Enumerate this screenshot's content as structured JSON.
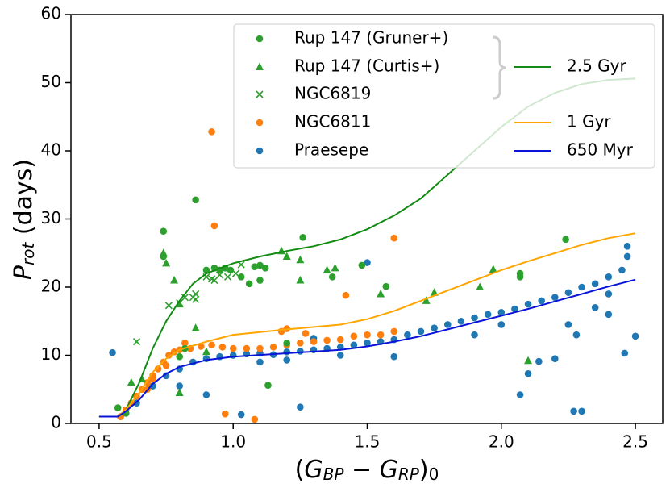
{
  "chart_data": {
    "type": "scatter",
    "xlabel": [
      {
        "text": "("
      },
      {
        "text": "G",
        "italic": true
      },
      {
        "text": "BP",
        "italic": true,
        "sub": true
      },
      {
        "text": " − "
      },
      {
        "text": "G",
        "italic": true
      },
      {
        "text": "RP",
        "italic": true,
        "sub": true
      },
      {
        "text": ")"
      },
      {
        "text": "0",
        "sub": true
      }
    ],
    "ylabel": [
      {
        "text": "P",
        "italic": true
      },
      {
        "text": "rot",
        "italic": true,
        "sub": true
      },
      {
        "text": " (days)"
      }
    ],
    "xlim": [
      0.395,
      2.602
    ],
    "ylim": [
      0,
      60
    ],
    "xticks": [
      0.5,
      {
        "value": 1,
        "label": "1.0"
      },
      1.5,
      {
        "value": 2,
        "label": "2.0"
      },
      2.5
    ],
    "yticks": [
      0,
      10,
      20,
      30,
      40,
      50,
      60
    ],
    "series": [
      {
        "name": "Rup 147 (Gruner+)",
        "color": "#2ca02c",
        "marker": "circle",
        "x": [
          0.74,
          0.74,
          0.86,
          0.9,
          0.93,
          0.95,
          0.97,
          0.99,
          1.03,
          1.08,
          1.1,
          1.12,
          1.06,
          1.1,
          1.2,
          1.13,
          1.26,
          1.37,
          1.48,
          1.57,
          2.07,
          2.07,
          2.24,
          0.57,
          0.6,
          0.82,
          0.8
        ],
        "y": [
          28.2,
          24.5,
          32.8,
          22.5,
          22.8,
          22.5,
          22.8,
          22.5,
          21.5,
          23,
          23.2,
          22.8,
          20.5,
          21,
          11.8,
          5.6,
          27.3,
          21.5,
          23.2,
          20.1,
          22,
          21.5,
          27,
          2.3,
          1.5,
          11,
          9.8
        ]
      },
      {
        "name": "Rup 147 (Curtis+)",
        "color": "#2ca02c",
        "marker": "triangle",
        "x": [
          0.62,
          0.66,
          0.75,
          0.74,
          0.78,
          0.8,
          0.8,
          0.86,
          0.9,
          1.2,
          1.18,
          1.25,
          1.35,
          1.38,
          1.55,
          1.72,
          1.75,
          1.92,
          1.97,
          2.1,
          1.25
        ],
        "y": [
          6,
          6.5,
          23.5,
          25,
          21,
          17.5,
          4.5,
          14,
          10.5,
          24.5,
          25.3,
          24,
          22.5,
          22.8,
          19,
          18,
          19.2,
          20,
          22.6,
          9.2,
          21
        ]
      },
      {
        "name": "NGC6819",
        "color": "#2ca02c",
        "marker": "x",
        "x": [
          0.64,
          0.76,
          0.8,
          0.82,
          0.85,
          0.86,
          0.9,
          0.92,
          0.95,
          0.98,
          1.01,
          1.03,
          0.95,
          0.86,
          0.93
        ],
        "y": [
          12,
          17.3,
          17.7,
          18.5,
          18.5,
          19,
          21.5,
          21.2,
          21.8,
          21.5,
          22,
          23.3,
          22.5,
          18.2,
          21
        ]
      },
      {
        "name": "NGC6811",
        "color": "#ff7f0e",
        "marker": "circle",
        "x": [
          0.58,
          0.6,
          0.62,
          0.64,
          0.66,
          0.68,
          0.7,
          0.72,
          0.74,
          0.76,
          0.78,
          0.8,
          0.84,
          0.88,
          0.92,
          0.96,
          1.0,
          1.05,
          1.1,
          1.15,
          1.2,
          1.25,
          1.3,
          1.35,
          1.4,
          1.45,
          1.5,
          1.55,
          1.42,
          1.6,
          0.92,
          0.93,
          0.97,
          1.08,
          1.18,
          1.27,
          0.7,
          0.68,
          0.75,
          0.82,
          1.2,
          1.6
        ],
        "y": [
          1,
          2,
          3,
          4,
          5,
          6,
          7,
          8,
          9,
          10,
          10.5,
          10.8,
          11,
          11.3,
          11.5,
          11.2,
          11,
          11,
          11,
          11.2,
          11.5,
          11.8,
          12,
          12.2,
          12.3,
          12.8,
          13,
          13,
          18.8,
          27.2,
          42.8,
          29,
          1.4,
          0.6,
          13.5,
          13.2,
          6.5,
          5,
          8.5,
          11.8,
          13.9,
          13.5
        ]
      },
      {
        "name": "Praesepe",
        "color": "#1f77b4",
        "marker": "circle",
        "x": [
          0.55,
          0.58,
          0.6,
          0.64,
          0.7,
          0.75,
          0.8,
          0.85,
          0.9,
          0.95,
          1.0,
          1.05,
          1.1,
          1.15,
          1.2,
          1.25,
          1.3,
          1.35,
          1.4,
          1.45,
          1.5,
          1.55,
          1.6,
          1.65,
          1.7,
          1.75,
          1.8,
          1.85,
          1.9,
          1.95,
          2.0,
          2.05,
          2.1,
          2.15,
          2.2,
          2.25,
          2.3,
          2.35,
          2.4,
          2.45,
          2.47,
          2.47,
          2.5,
          2.46,
          2.27,
          2.3,
          2.07,
          2.1,
          2.14,
          2.2,
          2.25,
          2.28,
          2.35,
          1.5,
          1.25,
          1.03,
          0.9,
          0.8,
          1.9,
          2.0,
          1.6,
          1.4,
          1.2,
          1.1,
          1.3,
          2.4,
          2.4
        ],
        "y": [
          10.4,
          1,
          1.5,
          3,
          5.5,
          7,
          8,
          9,
          9.5,
          9.8,
          10,
          10.2,
          10.3,
          10.1,
          10.5,
          10.6,
          10.8,
          11,
          11.2,
          11.5,
          11.8,
          12,
          12.3,
          13,
          13.5,
          14,
          14.5,
          15,
          15.5,
          16,
          16.3,
          16.8,
          17.5,
          18,
          18.5,
          19.2,
          20,
          20.5,
          21.5,
          22.5,
          26,
          24.5,
          12.8,
          10.3,
          1.8,
          1.8,
          4.2,
          7.3,
          9.1,
          9.5,
          14.5,
          13,
          17,
          23.6,
          2.4,
          1.3,
          4.2,
          5.5,
          13,
          14.5,
          9.8,
          10,
          9.3,
          9,
          12.5,
          16,
          19
        ]
      }
    ],
    "lines": [
      {
        "name": "2.5 Gyr",
        "color": "#138a13",
        "x": [
          0.5,
          0.57,
          0.6,
          0.65,
          0.7,
          0.75,
          0.8,
          0.85,
          0.9,
          1.0,
          1.1,
          1.2,
          1.3,
          1.4,
          1.5,
          1.6,
          1.7,
          1.8,
          1.9,
          2.0,
          2.1,
          2.2,
          2.3,
          2.4,
          2.5
        ],
        "y": [
          1,
          1,
          2,
          6,
          11,
          15,
          18,
          20.5,
          22,
          23.5,
          24.5,
          25.3,
          26,
          27,
          28.5,
          30.5,
          33,
          36.5,
          40,
          43.5,
          46.5,
          48.5,
          49.8,
          50.4,
          50.6
        ]
      },
      {
        "name": "1 Gyr",
        "color": "#ffa500",
        "x": [
          0.5,
          0.57,
          0.6,
          0.65,
          0.7,
          0.75,
          0.8,
          0.9,
          1.0,
          1.2,
          1.4,
          1.5,
          1.6,
          1.7,
          1.8,
          1.9,
          2.0,
          2.1,
          2.2,
          2.3,
          2.4,
          2.5
        ],
        "y": [
          1,
          1,
          2,
          4.5,
          7.5,
          9.5,
          10.8,
          12,
          13,
          13.8,
          14.5,
          15.3,
          16.5,
          18,
          19.5,
          21,
          22.5,
          23.8,
          25,
          26.2,
          27.2,
          27.9
        ]
      },
      {
        "name": "650 Myr",
        "color": "#0a14d8",
        "x": [
          0.5,
          0.57,
          0.6,
          0.65,
          0.7,
          0.75,
          0.8,
          0.9,
          1.0,
          1.2,
          1.4,
          1.5,
          1.6,
          1.7,
          1.8,
          1.9,
          2.0,
          2.1,
          2.2,
          2.3,
          2.4,
          2.5
        ],
        "y": [
          1,
          1,
          1.8,
          3.5,
          5.8,
          7.3,
          8.3,
          9.3,
          9.8,
          10.3,
          10.8,
          11.3,
          12,
          12.8,
          13.8,
          14.8,
          15.8,
          16.8,
          17.9,
          19,
          20.1,
          21.1
        ]
      }
    ]
  }
}
